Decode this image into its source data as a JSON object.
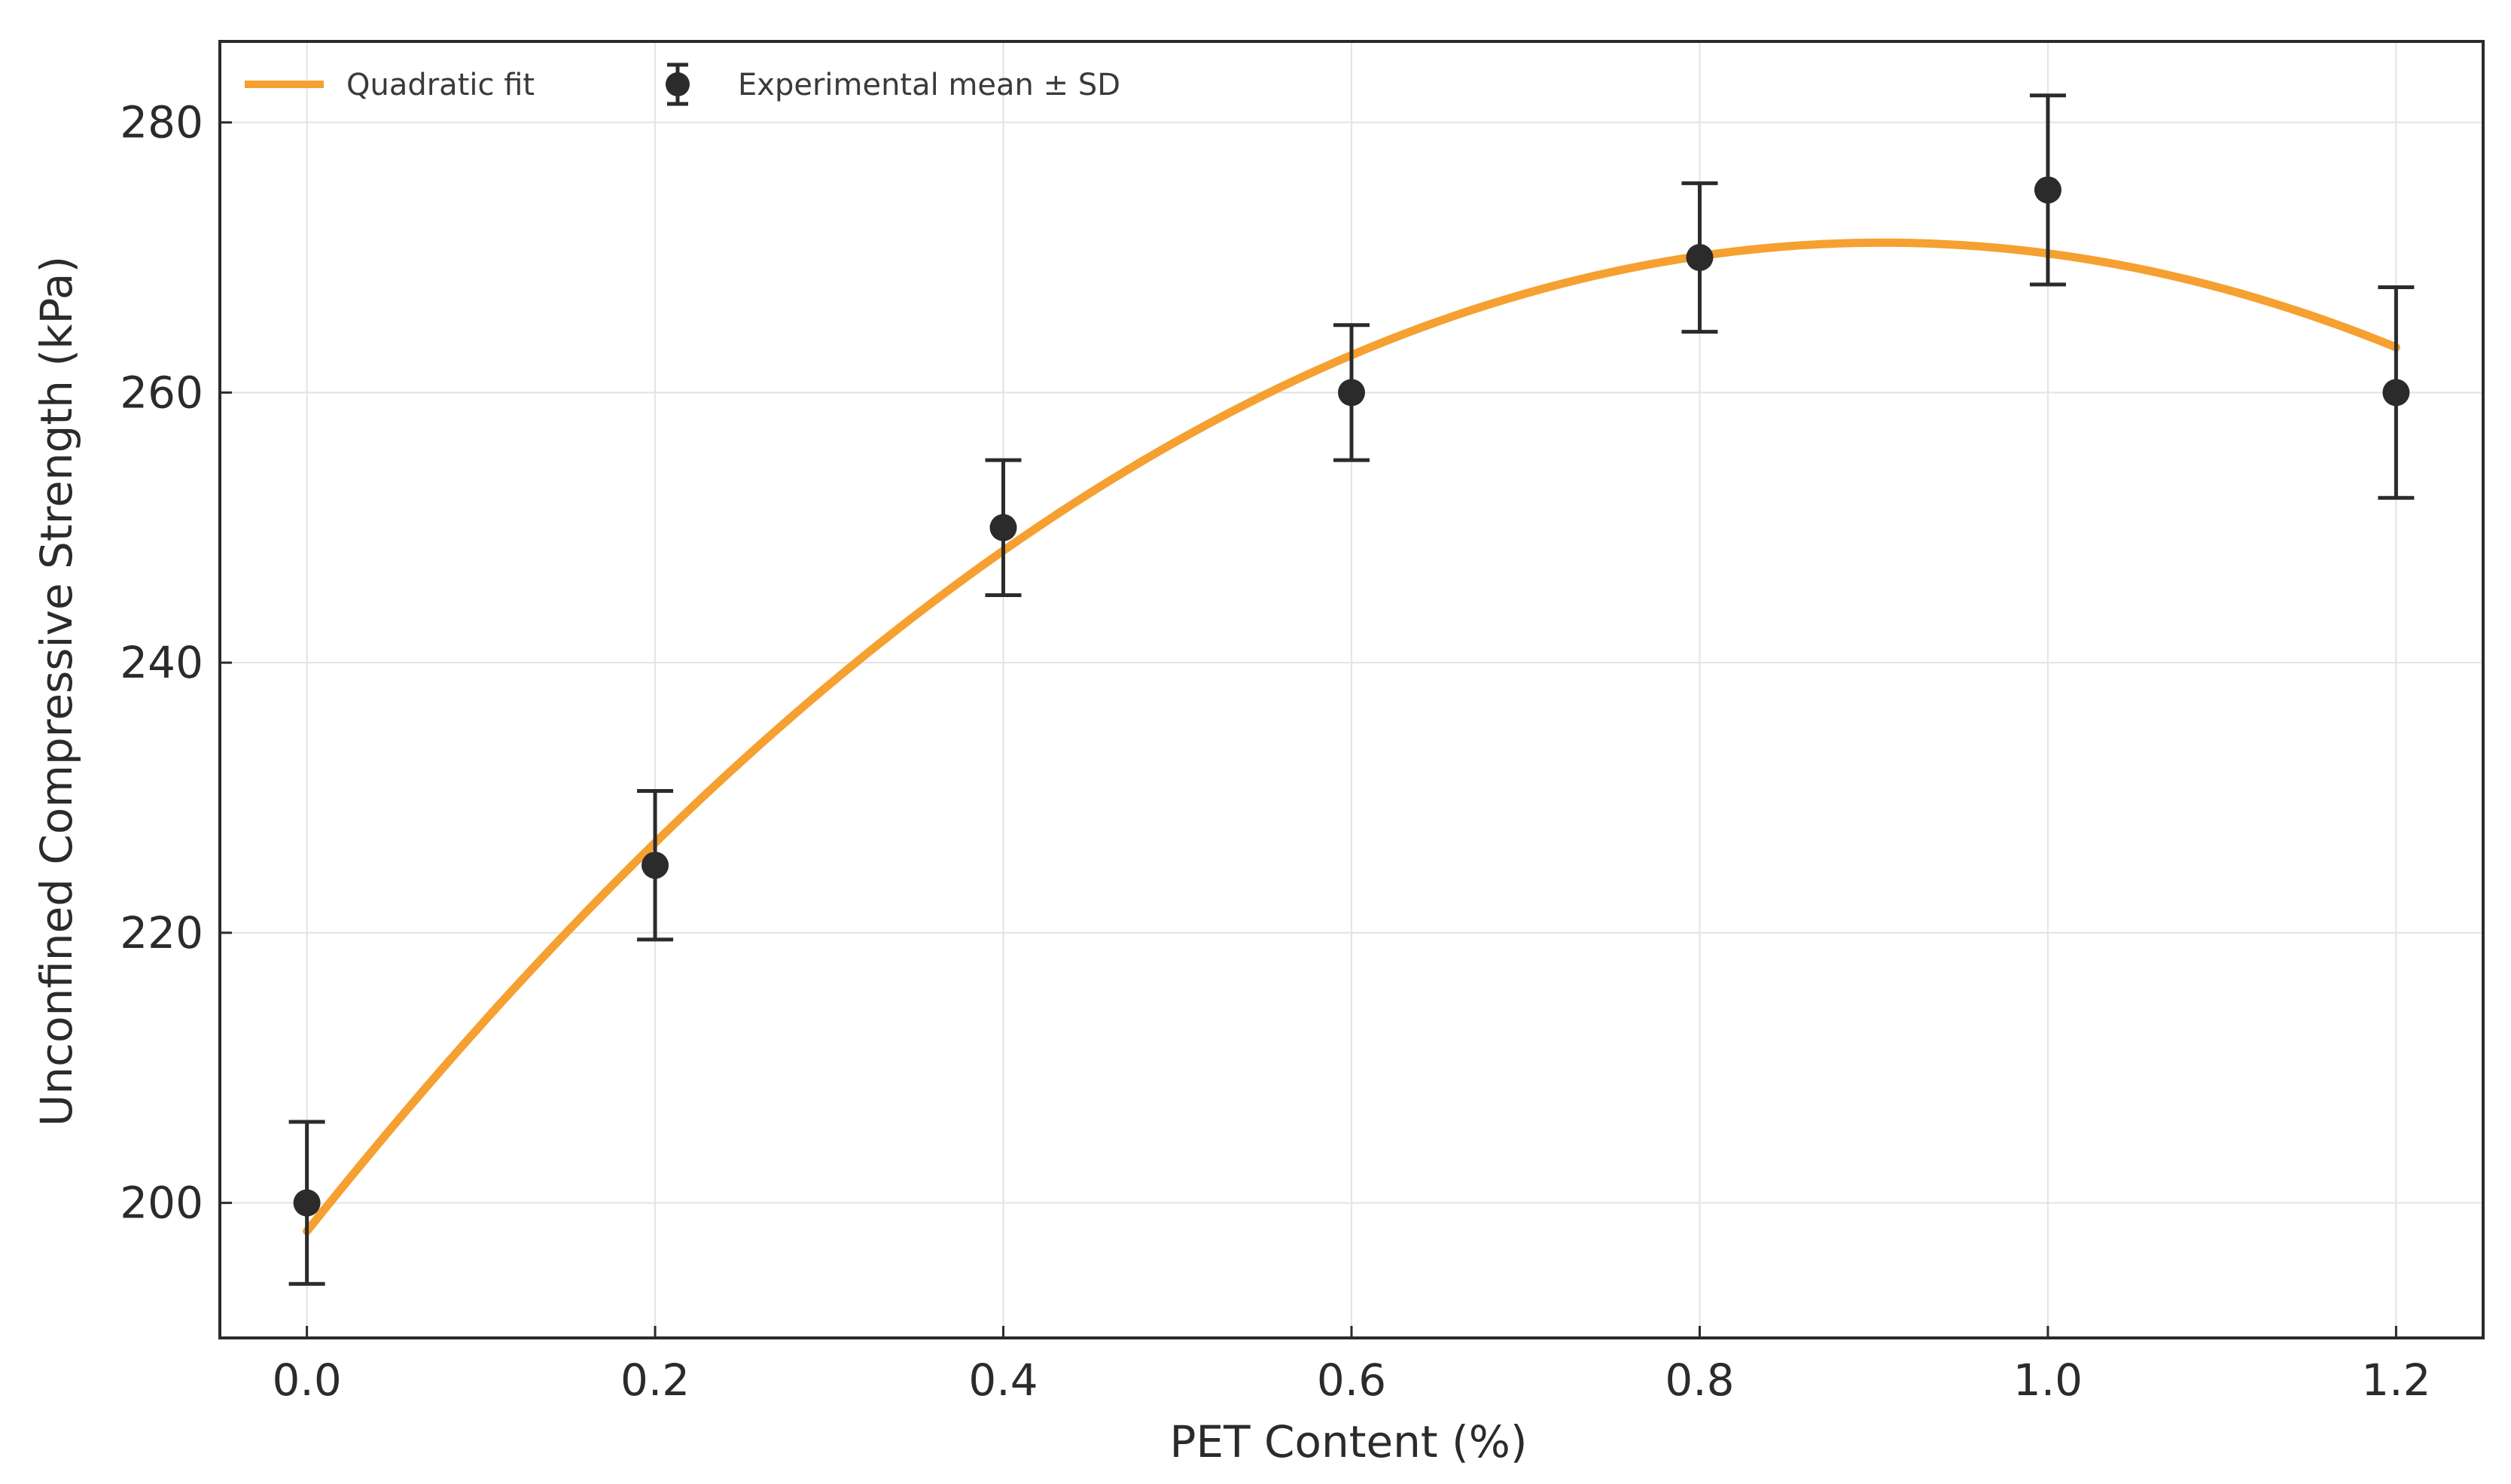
{
  "chart_data": {
    "type": "scatter",
    "title": "",
    "xlabel": "PET Content (%)",
    "ylabel": "Unconfined Compressive Strength (kPa)",
    "xlim": [
      -0.05,
      1.25
    ],
    "ylim": [
      190,
      286
    ],
    "xticks": [
      0.0,
      0.2,
      0.4,
      0.6,
      0.8,
      1.0,
      1.2
    ],
    "xtick_labels": [
      "0.0",
      "0.2",
      "0.4",
      "0.6",
      "0.8",
      "1.0",
      "1.2"
    ],
    "yticks": [
      200,
      220,
      240,
      260,
      280
    ],
    "ytick_labels": [
      "200",
      "220",
      "240",
      "260",
      "280"
    ],
    "grid": true,
    "legend_position": "top-left",
    "series": [
      {
        "name": "Quadratic fit",
        "kind": "line",
        "color": "#f5a030",
        "coefficients": {
          "a": -89.3,
          "b": 161.7,
          "c": 197.9
        },
        "x_range": [
          0.0,
          1.2
        ]
      },
      {
        "name": "Experimental mean ± SD",
        "kind": "errorbar",
        "color": "#2b2b2b",
        "x": [
          0.0,
          0.2,
          0.4,
          0.6,
          0.8,
          1.0,
          1.2
        ],
        "y": [
          200,
          225,
          250,
          260,
          270,
          275,
          260
        ],
        "err": [
          6,
          5.5,
          5,
          5,
          5.5,
          7,
          7.8
        ]
      }
    ]
  }
}
